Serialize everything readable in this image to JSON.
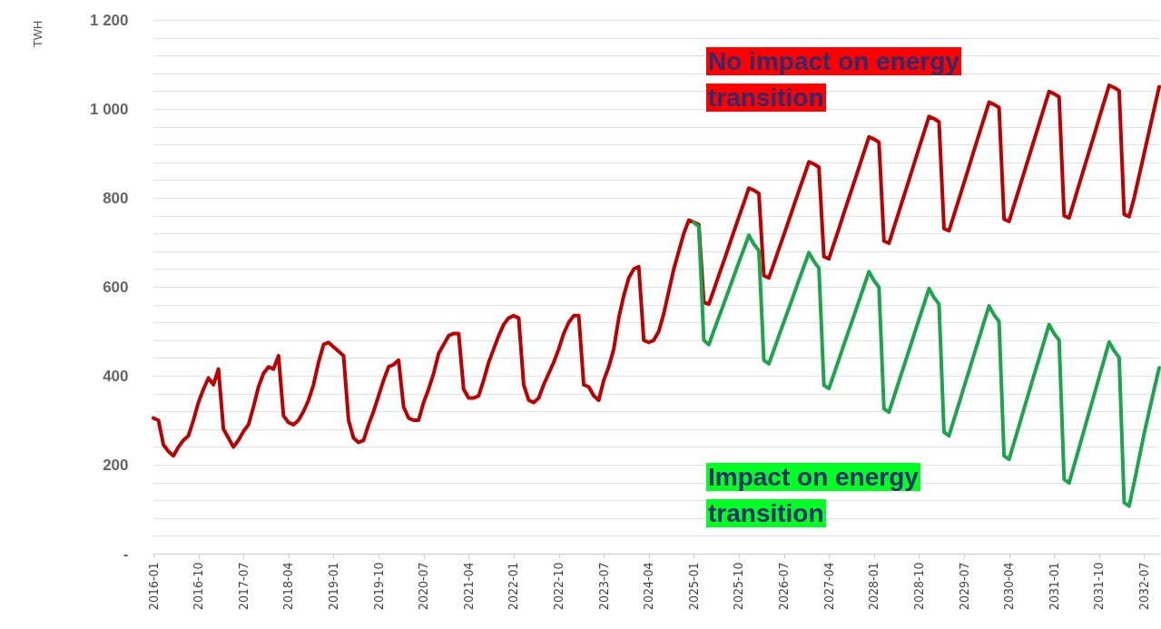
{
  "chart_data": {
    "type": "line",
    "ylabel": "TWH",
    "categories": [
      "2016-01",
      null,
      null,
      null,
      null,
      null,
      null,
      null,
      null,
      "2016-10",
      null,
      null,
      null,
      null,
      null,
      null,
      null,
      null,
      "2017-07",
      null,
      null,
      null,
      null,
      null,
      null,
      null,
      null,
      "2018-04",
      null,
      null,
      null,
      null,
      null,
      null,
      null,
      null,
      "2019-01",
      null,
      null,
      null,
      null,
      null,
      null,
      null,
      null,
      "2019-10",
      null,
      null,
      null,
      null,
      null,
      null,
      null,
      null,
      "2020-07",
      null,
      null,
      null,
      null,
      null,
      null,
      null,
      null,
      "2021-04",
      null,
      null,
      null,
      null,
      null,
      null,
      null,
      null,
      "2022-01",
      null,
      null,
      null,
      null,
      null,
      null,
      null,
      null,
      "2022-10",
      null,
      null,
      null,
      null,
      null,
      null,
      null,
      null,
      "2023-07",
      null,
      null,
      null,
      null,
      null,
      null,
      null,
      null,
      "2024-04",
      null,
      null,
      null,
      null,
      null,
      null,
      null,
      null,
      "2025-01",
      null,
      null,
      null,
      null,
      null,
      null,
      null,
      null,
      "2025-10",
      null,
      null,
      null,
      null,
      null,
      null,
      null,
      null,
      "2026-07",
      null,
      null,
      null,
      null,
      null,
      null,
      null,
      null,
      "2027-04",
      null,
      null,
      null,
      null,
      null,
      null,
      null,
      null,
      "2028-01",
      null,
      null,
      null,
      null,
      null,
      null,
      null,
      null,
      "2028-10",
      null,
      null,
      null,
      null,
      null,
      null,
      null,
      null,
      "2029-07",
      null,
      null,
      null,
      null,
      null,
      null,
      null,
      null,
      "2030-04",
      null,
      null,
      null,
      null,
      null,
      null,
      null,
      null,
      "2031-01",
      null,
      null,
      null,
      null,
      null,
      null,
      null,
      null,
      "2031-10",
      null,
      null,
      null,
      null,
      null,
      null,
      null,
      null,
      "2032-07",
      null,
      null,
      null
    ],
    "series": [
      {
        "name": "No impact on energy transition",
        "color": "#c00000",
        "values": [
          305,
          300,
          245,
          230,
          220,
          240,
          255,
          265,
          300,
          340,
          370,
          395,
          380,
          415,
          280,
          260,
          240,
          255,
          275,
          290,
          330,
          375,
          405,
          420,
          415,
          445,
          310,
          295,
          290,
          300,
          320,
          345,
          380,
          430,
          470,
          475,
          465,
          455,
          445,
          300,
          260,
          250,
          255,
          290,
          320,
          355,
          390,
          420,
          425,
          435,
          330,
          305,
          300,
          300,
          340,
          370,
          405,
          450,
          470,
          490,
          495,
          495,
          370,
          350,
          350,
          355,
          390,
          430,
          460,
          490,
          515,
          530,
          535,
          530,
          380,
          345,
          340,
          350,
          380,
          405,
          430,
          460,
          495,
          520,
          535,
          535,
          380,
          375,
          355,
          345,
          390,
          420,
          460,
          530,
          580,
          620,
          640,
          645,
          480,
          475,
          480,
          500,
          540,
          590,
          640,
          680,
          720,
          750,
          745,
          740,
          565,
          561,
          593,
          626,
          658,
          691,
          724,
          757,
          789,
          822,
          817,
          810,
          625,
          620,
          652,
          685,
          717,
          750,
          783,
          816,
          848,
          881,
          876,
          869,
          668,
          663,
          697,
          731,
          766,
          800,
          834,
          868,
          903,
          937,
          932,
          925,
          703,
          698,
          734,
          769,
          805,
          840,
          876,
          912,
          947,
          983,
          978,
          971,
          731,
          726,
          762,
          798,
          834,
          870,
          907,
          943,
          979,
          1015,
          1010,
          1003,
          752,
          747,
          784,
          820,
          857,
          893,
          930,
          966,
          1003,
          1039,
          1034,
          1027,
          760,
          755,
          792,
          830,
          867,
          904,
          941,
          979,
          1016,
          1053,
          1048,
          1041,
          763,
          758,
          800,
          850,
          900,
          950,
          1000,
          1050
        ]
      },
      {
        "name": "Impact on energy transition",
        "color": "#1ca64c",
        "values": [
          null,
          null,
          null,
          null,
          null,
          null,
          null,
          null,
          null,
          null,
          null,
          null,
          null,
          null,
          null,
          null,
          null,
          null,
          null,
          null,
          null,
          null,
          null,
          null,
          null,
          null,
          null,
          null,
          null,
          null,
          null,
          null,
          null,
          null,
          null,
          null,
          null,
          null,
          null,
          null,
          null,
          null,
          null,
          null,
          null,
          null,
          null,
          null,
          null,
          null,
          null,
          null,
          null,
          null,
          null,
          null,
          null,
          null,
          null,
          null,
          null,
          null,
          null,
          null,
          null,
          null,
          null,
          null,
          null,
          null,
          null,
          null,
          null,
          null,
          null,
          null,
          null,
          null,
          null,
          null,
          null,
          null,
          null,
          null,
          null,
          null,
          null,
          null,
          null,
          null,
          null,
          null,
          null,
          null,
          null,
          null,
          null,
          null,
          null,
          null,
          null,
          null,
          null,
          null,
          null,
          null,
          null,
          null,
          745,
          735,
          480,
          470,
          501,
          532,
          562,
          593,
          624,
          655,
          685,
          716,
          696,
          681,
          435,
          427,
          458,
          490,
          521,
          552,
          583,
          615,
          646,
          677,
          657,
          642,
          379,
          371,
          404,
          437,
          470,
          503,
          535,
          568,
          601,
          634,
          614,
          599,
          326,
          318,
          353,
          388,
          422,
          457,
          492,
          527,
          561,
          596,
          576,
          561,
          273,
          265,
          302,
          338,
          375,
          411,
          448,
          484,
          521,
          557,
          537,
          522,
          220,
          212,
          250,
          288,
          326,
          364,
          402,
          439,
          477,
          515,
          495,
          480,
          167,
          159,
          199,
          238,
          278,
          318,
          357,
          397,
          436,
          476,
          456,
          441,
          115,
          107,
          160,
          215,
          270,
          320,
          370,
          418
        ]
      }
    ],
    "ylim": [
      0,
      1200
    ],
    "yticks": [
      {
        "value": 0,
        "label": "-"
      },
      {
        "value": 40,
        "label": null
      },
      {
        "value": 80,
        "label": null
      },
      {
        "value": 120,
        "label": null
      },
      {
        "value": 160,
        "label": null
      },
      200,
      {
        "value": 240,
        "label": null
      },
      {
        "value": 280,
        "label": null
      },
      {
        "value": 320,
        "label": null
      },
      {
        "value": 360,
        "label": null
      },
      400,
      {
        "value": 440,
        "label": null
      },
      {
        "value": 480,
        "label": null
      },
      {
        "value": 520,
        "label": null
      },
      {
        "value": 560,
        "label": null
      },
      600,
      {
        "value": 640,
        "label": null
      },
      {
        "value": 680,
        "label": null
      },
      {
        "value": 720,
        "label": null
      },
      {
        "value": 760,
        "label": null
      },
      800,
      {
        "value": 840,
        "label": null
      },
      {
        "value": 880,
        "label": null
      },
      {
        "value": 920,
        "label": null
      },
      {
        "value": 960,
        "label": null
      },
      {
        "value": 1000,
        "label": "1 000"
      },
      {
        "value": 1040,
        "label": null
      },
      {
        "value": 1080,
        "label": null
      },
      {
        "value": 1120,
        "label": null
      },
      {
        "value": 1160,
        "label": null
      },
      {
        "value": 1200,
        "label": "1 200"
      }
    ],
    "grid": true
  }
}
